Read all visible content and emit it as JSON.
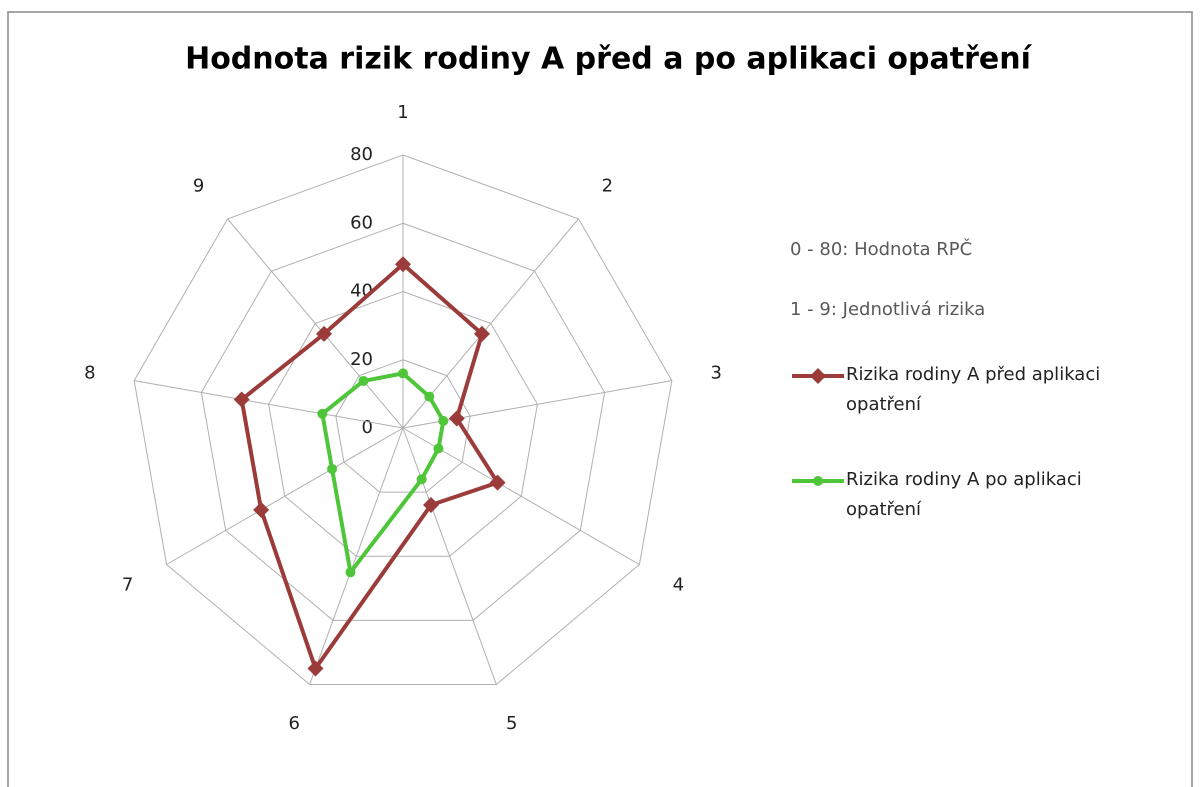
{
  "chart_data": {
    "type": "radar",
    "title": "Hodnota rizik rodiny A před a po aplikaci opatření",
    "annotations": [
      "0 - 80: Hodnota RPČ",
      "1 - 9: Jednotlivá rizika"
    ],
    "categories": [
      "1",
      "2",
      "3",
      "4",
      "5",
      "6",
      "7",
      "8",
      "9"
    ],
    "series": [
      {
        "name": "Rizika rodiny A před aplikaci opatření",
        "color": "#9b3b3a",
        "marker": "diamond",
        "values": [
          48,
          36,
          16,
          32,
          24,
          75,
          48,
          48,
          36
        ]
      },
      {
        "name": "Rizika rodiny A po aplikaci opatření",
        "color": "#4fc63a",
        "marker": "circle",
        "values": [
          16,
          12,
          12,
          12,
          16,
          45,
          24,
          24,
          18
        ]
      }
    ],
    "ylim": [
      0,
      80
    ],
    "yticks": [
      0,
      20,
      40,
      60,
      80
    ],
    "grid": true
  }
}
